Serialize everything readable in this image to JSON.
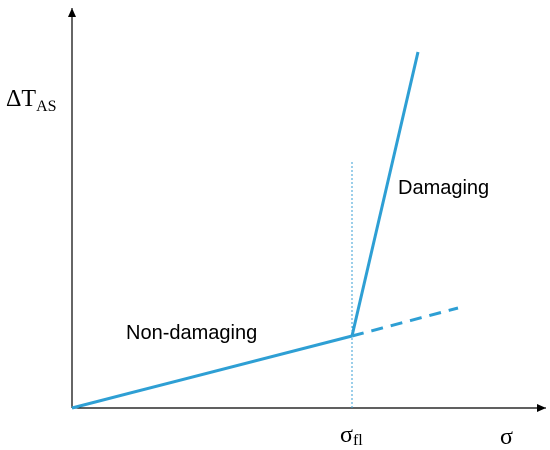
{
  "y_axis_label": {
    "symbol": "ΔT",
    "subscript": "AS"
  },
  "x_axis_label": "σ",
  "threshold_label": {
    "symbol": "σ",
    "subscript": "fl"
  },
  "regions": [
    {
      "label": "Non-damaging"
    },
    {
      "label": "Damaging"
    }
  ]
}
